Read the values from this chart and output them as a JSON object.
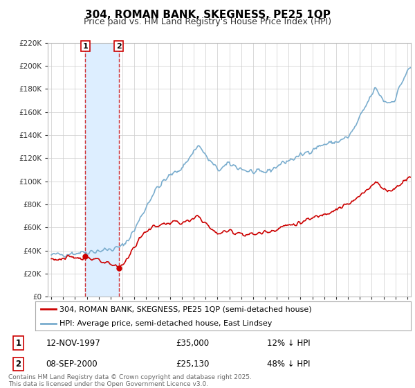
{
  "title": "304, ROMAN BANK, SKEGNESS, PE25 1QP",
  "subtitle": "Price paid vs. HM Land Registry's House Price Index (HPI)",
  "legend_line1": "304, ROMAN BANK, SKEGNESS, PE25 1QP (semi-detached house)",
  "legend_line2": "HPI: Average price, semi-detached house, East Lindsey",
  "annotation1_date": "12-NOV-1997",
  "annotation1_price": "£35,000",
  "annotation1_hpi": "12% ↓ HPI",
  "annotation2_date": "08-SEP-2000",
  "annotation2_price": "£25,130",
  "annotation2_hpi": "48% ↓ HPI",
  "footer": "Contains HM Land Registry data © Crown copyright and database right 2025.\nThis data is licensed under the Open Government Licence v3.0.",
  "ylim": [
    0,
    220000
  ],
  "line_color_property": "#cc0000",
  "line_color_hpi": "#7aadce",
  "shade_color": "#ddeeff",
  "background_color": "#ffffff",
  "grid_color": "#cccccc",
  "annotation_box_color": "#cc0000",
  "sale1_x": 1997.87,
  "sale1_y": 35000,
  "sale2_x": 2000.69,
  "sale2_y": 25130,
  "xmin": 1995.0,
  "xmax": 2025.3
}
